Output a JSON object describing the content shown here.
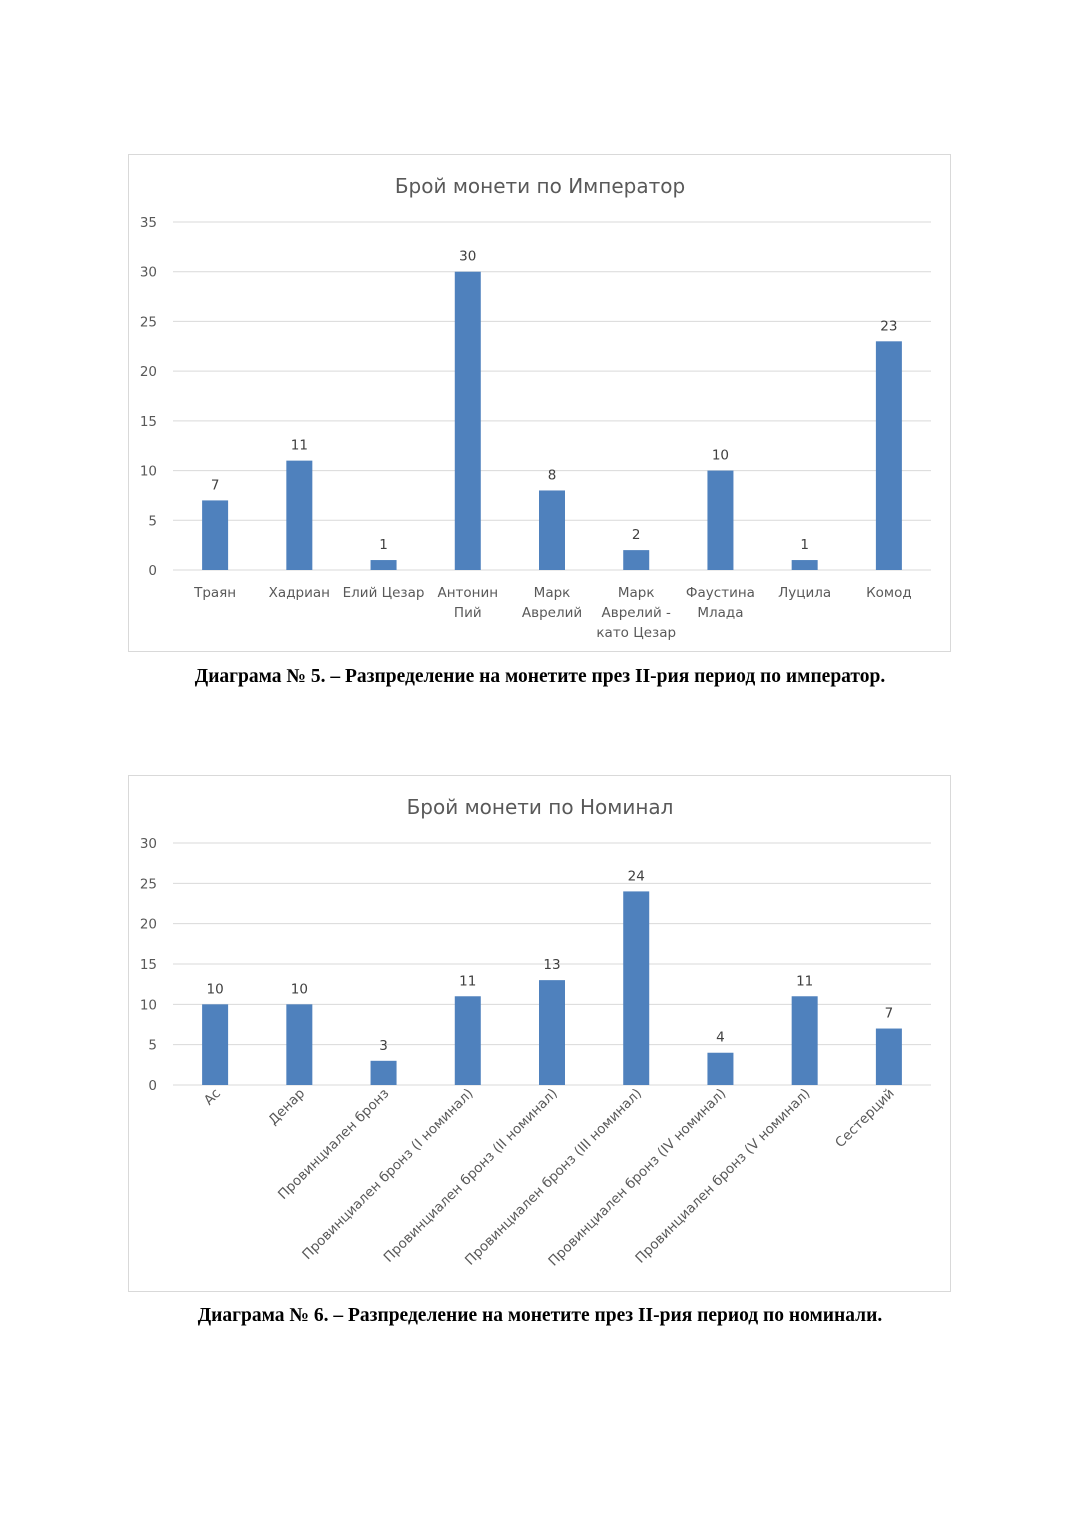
{
  "colors": {
    "bar": "#4f81bd",
    "grid": "#d9d9d9",
    "text": "#595959"
  },
  "chart_data": [
    {
      "type": "bar",
      "title": "Брой монети по Император",
      "categories": [
        "Траян",
        "Хадриан",
        "Елий Цезар",
        "Антонин\nПий",
        "Марк\nАврелий",
        "Марк\nАврелий -\nкато Цезар",
        "Фаустина\nМлада",
        "Луцила",
        "Комод"
      ],
      "values": [
        7,
        11,
        1,
        30,
        8,
        2,
        10,
        1,
        23
      ],
      "xlabel": "",
      "ylabel": "",
      "ylim": [
        0,
        35
      ],
      "yticks": [
        0,
        5,
        10,
        15,
        20,
        25,
        30,
        35
      ],
      "grid": true,
      "legend": "none",
      "label_rotation": 0
    },
    {
      "type": "bar",
      "title": "Брой монети по Номинал",
      "categories": [
        "Ас",
        "Денар",
        "Провинциален бронз",
        "Провинциален бронз (I номинал)",
        "Провинциален бронз (II номинал)",
        "Провинциален бронз (III номинал)",
        "Провинциален бронз (IV номинал)",
        "Провинциален бронз (V номинал)",
        "Сестерций"
      ],
      "values": [
        10,
        10,
        3,
        11,
        13,
        24,
        4,
        11,
        7
      ],
      "xlabel": "",
      "ylabel": "",
      "ylim": [
        0,
        30
      ],
      "yticks": [
        0,
        5,
        10,
        15,
        20,
        25,
        30
      ],
      "grid": true,
      "legend": "none",
      "label_rotation": -45
    }
  ],
  "captions": [
    "Диаграма № 5. – Разпределение на монетите през II-рия период по император.",
    "Диаграма № 6. – Разпределение на монетите през II-рия период по номинали."
  ]
}
